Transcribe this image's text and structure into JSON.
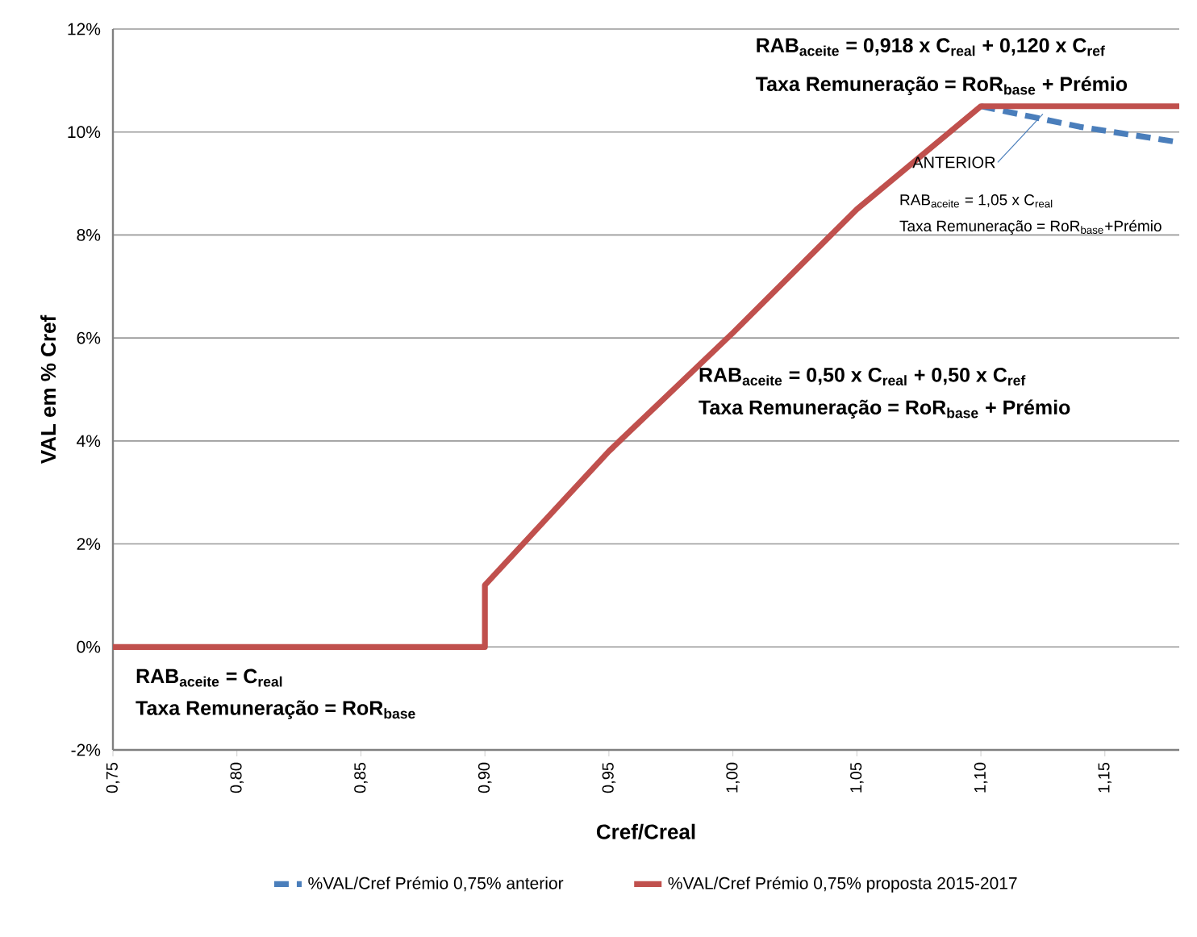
{
  "chart_data": {
    "type": "line",
    "xlabel": "Cref/Creal",
    "ylabel": "VAL em % Cref",
    "xlim": [
      0.75,
      1.18
    ],
    "xticks": [
      {
        "value": 0.75,
        "label": "0,75"
      },
      {
        "value": 0.8,
        "label": "0,80"
      },
      {
        "value": 0.85,
        "label": "0,85"
      },
      {
        "value": 0.9,
        "label": "0,90"
      },
      {
        "value": 0.95,
        "label": "0,95"
      },
      {
        "value": 1.0,
        "label": "1,00"
      },
      {
        "value": 1.05,
        "label": "1,05"
      },
      {
        "value": 1.1,
        "label": "1,10"
      },
      {
        "value": 1.15,
        "label": "1,15"
      }
    ],
    "ylim": [
      -2,
      12
    ],
    "yticks": [
      {
        "value": -2,
        "label": "-2%"
      },
      {
        "value": 0,
        "label": "0%"
      },
      {
        "value": 2,
        "label": "2%"
      },
      {
        "value": 4,
        "label": "4%"
      },
      {
        "value": 6,
        "label": "6%"
      },
      {
        "value": 8,
        "label": "8%"
      },
      {
        "value": 10,
        "label": "10%"
      },
      {
        "value": 12,
        "label": "12%"
      }
    ],
    "grid": "y",
    "legend": "bottom",
    "series": [
      {
        "name": "%VAL/Cref Prémio 0,75% anterior",
        "color": "#4a7ebb",
        "line_style": "dashed",
        "x": [
          1.1,
          1.12,
          1.14,
          1.16,
          1.18
        ],
        "values": [
          10.5,
          10.3,
          10.1,
          9.95,
          9.8
        ]
      },
      {
        "name": "%VAL/Cref Prémio 0,75% proposta 2015-2017",
        "color": "#c0504d",
        "line_style": "solid",
        "x": [
          0.75,
          0.9,
          0.9,
          0.95,
          1.0,
          1.05,
          1.1,
          1.18
        ],
        "values": [
          0,
          0,
          1.2,
          3.8,
          6.1,
          8.5,
          10.5,
          10.5
        ]
      }
    ],
    "annotations": [
      "RAB$_{aceite}$ = 0,918 x C$_{real}$ + 0,120 x C$_{ref}$",
      "Taxa Remuneração = RoR$_{base}$ + Prémio",
      "RAB$_{aceite}$ = 0,50 x C$_{real}$ + 0,50 x C$_{ref}$",
      "Taxa Remuneração = RoR$_{base}$ + Prémio",
      "RAB$_{aceite}$ = C$_{real}$",
      "Taxa Remuneração = RoR$_{base}$",
      {
        "text": "ANTERIOR",
        "x": 1.125,
        "y": 10.35
      },
      "RAB$_{aceite}$ = 1,05 x C$_{real}$",
      "Taxa Remuneração = RoR$_{base}$+Prémio"
    ]
  }
}
